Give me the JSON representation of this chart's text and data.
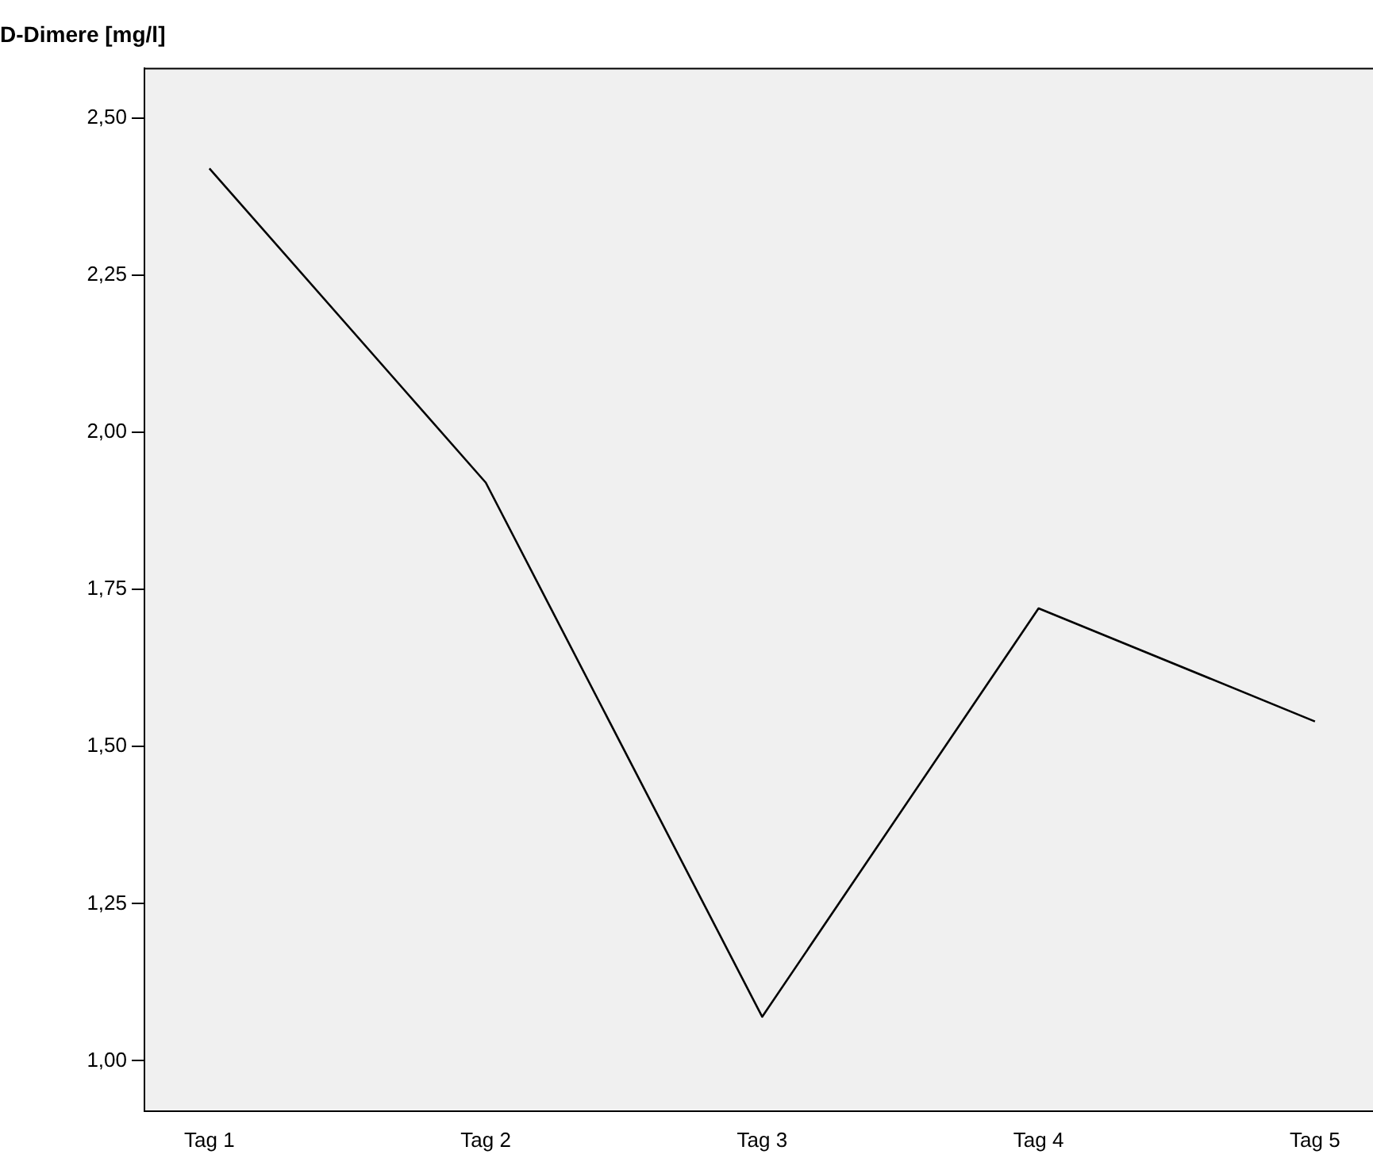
{
  "chart_data": {
    "type": "line",
    "ylabel": "D-Dimere [mg/l]",
    "categories": [
      "Tag 1",
      "Tag 2",
      "Tag 3",
      "Tag 4",
      "Tag 5"
    ],
    "series": [
      {
        "color": "#000000",
        "values": [
          2.42,
          1.92,
          1.07,
          1.72,
          1.54
        ]
      }
    ],
    "ylim": [
      0.92,
      2.58
    ],
    "yticks": [
      {
        "value": 1.0,
        "label": "1,00"
      },
      {
        "value": 1.25,
        "label": "1,25"
      },
      {
        "value": 1.5,
        "label": "1,50"
      },
      {
        "value": 1.75,
        "label": "1,75"
      },
      {
        "value": 2.0,
        "label": "2,00"
      },
      {
        "value": 2.25,
        "label": "2,25"
      },
      {
        "value": 2.5,
        "label": "2,50"
      }
    ],
    "grid": false,
    "legend": false,
    "marker": "none",
    "line_style": "solid"
  }
}
